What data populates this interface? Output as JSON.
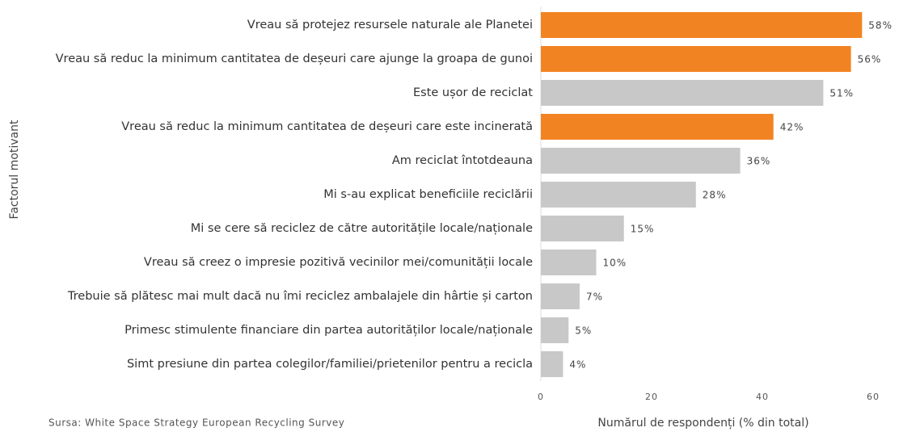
{
  "chart_data": {
    "type": "barh",
    "categories": [
      "Vreau să protejez resursele naturale ale Planetei",
      "Vreau să reduc la minimum cantitatea de deșeuri care ajunge la groapa de gunoi",
      "Este ușor de reciclat",
      "Vreau să reduc la minimum cantitatea de deșeuri care este incinerată",
      "Am reciclat întotdeauna",
      "Mi s-au explicat beneficiile reciclării",
      "Mi se cere să reciclez de către autoritățile locale/naționale",
      "Vreau să creez o impresie pozitivă vecinilor mei/comunității locale",
      "Trebuie să plătesc mai mult dacă nu îmi reciclez ambalajele din hârtie și carton",
      "Primesc stimulente financiare din partea autorităților locale/naționale",
      "Simt presiune din partea colegilor/familiei/prietenilor pentru a recicla"
    ],
    "values": [
      58,
      56,
      51,
      42,
      36,
      28,
      15,
      10,
      7,
      5,
      4
    ],
    "value_labels": [
      "58%",
      "56%",
      "51%",
      "42%",
      "36%",
      "28%",
      "15%",
      "10%",
      "7%",
      "5%",
      "4%"
    ],
    "colors": [
      "#f28322",
      "#f28322",
      "#c8c8c8",
      "#f28322",
      "#c8c8c8",
      "#c8c8c8",
      "#c8c8c8",
      "#c8c8c8",
      "#c8c8c8",
      "#c8c8c8",
      "#c8c8c8"
    ],
    "xlim": [
      0,
      60
    ],
    "xticks": [
      0,
      20,
      40,
      60
    ],
    "xlabel": "Numărul de respondenți (% din total)",
    "ylabel": "Factorul motivant",
    "source": "Sursa: White Space Strategy European Recycling Survey"
  }
}
